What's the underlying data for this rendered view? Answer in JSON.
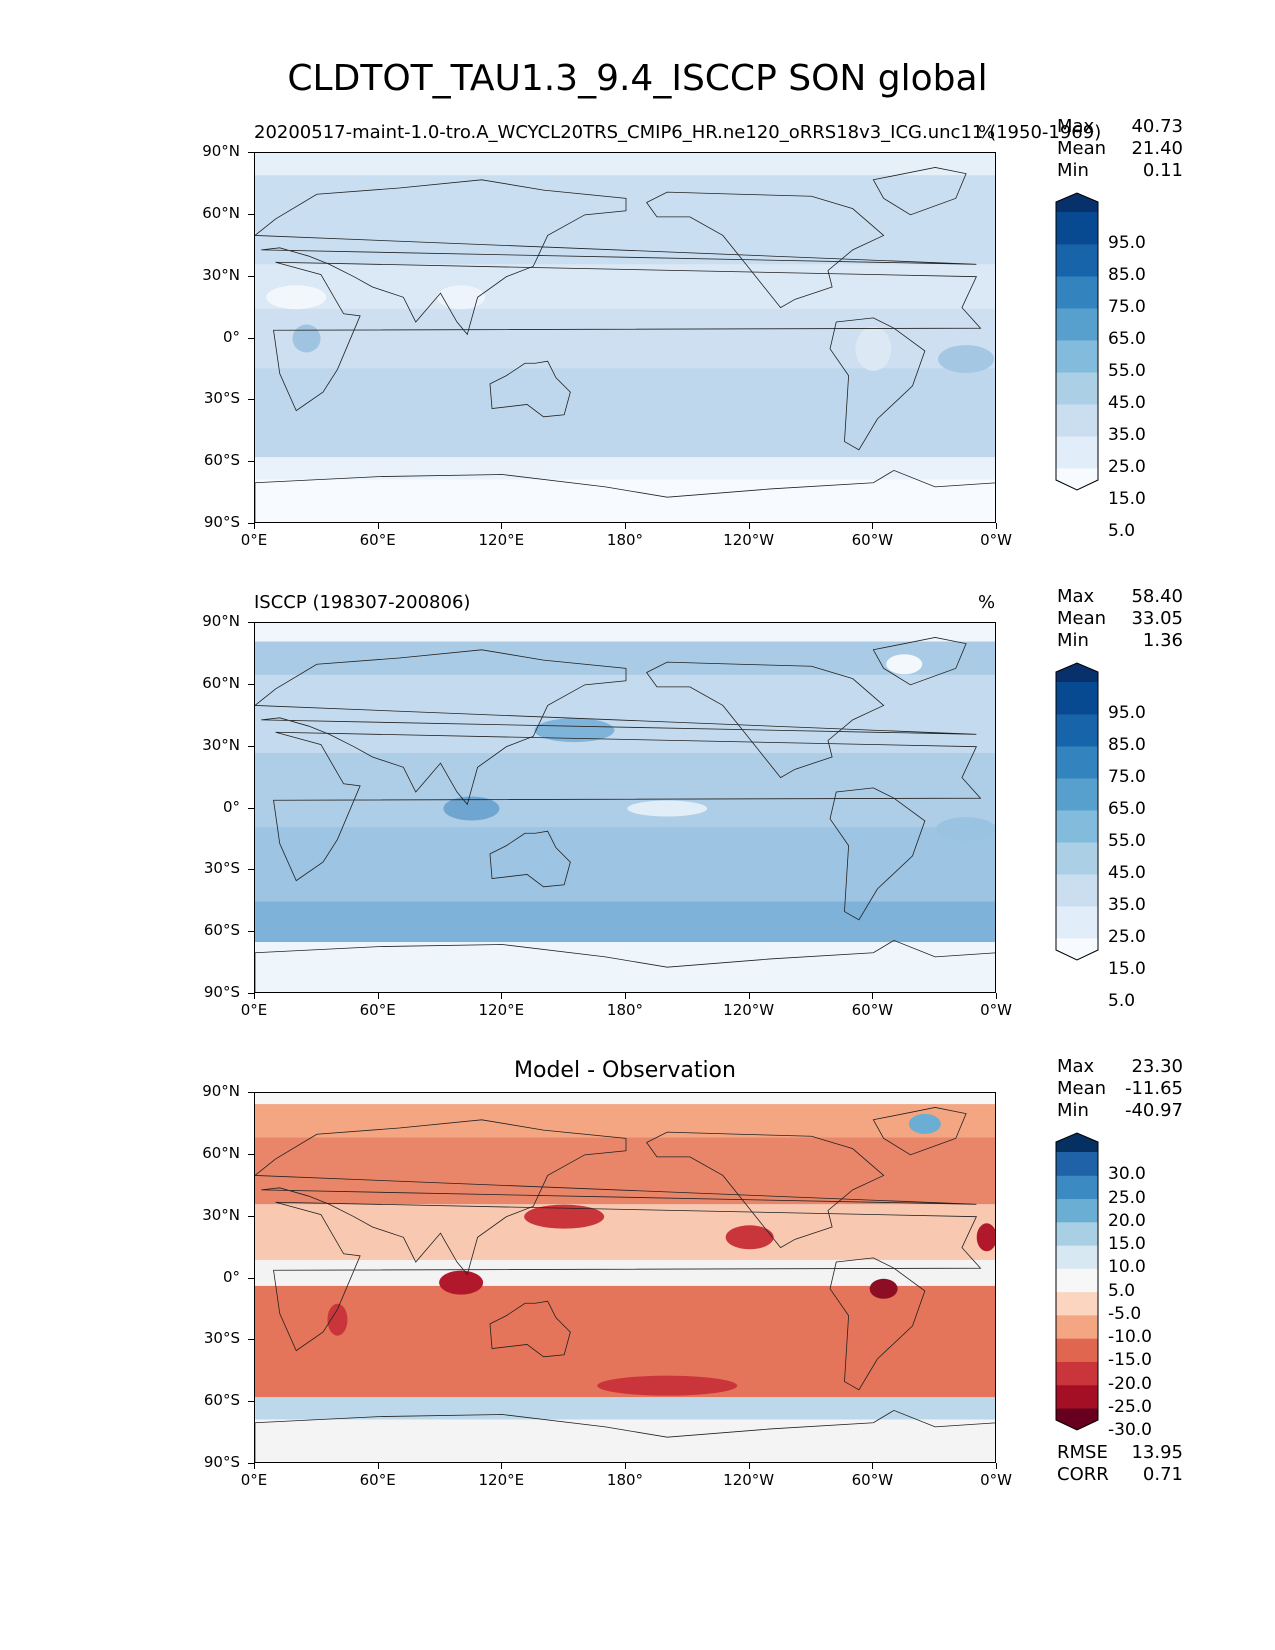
{
  "figure": {
    "title": "CLDTOT_TAU1.3_9.4_ISCCP SON global"
  },
  "axes": {
    "lat_labels": [
      "90°N",
      "60°N",
      "30°N",
      "0°",
      "30°S",
      "60°S",
      "90°S"
    ],
    "lon_labels": [
      "0°E",
      "60°E",
      "120°E",
      "180°",
      "120°W",
      "60°W",
      "0°W"
    ]
  },
  "panels": [
    {
      "id": "model",
      "title_left": "20200517-maint-1.0-tro.A_WCYCL20TRS_CMIP6_HR.ne120_oRRS18v3_ICG.unc11 (1950-1969)",
      "title_right": "%",
      "title_center": "",
      "stats": [
        {
          "label": "Max",
          "value": "40.73"
        },
        {
          "label": "Mean",
          "value": "21.40"
        },
        {
          "label": "Min",
          "value": "0.11"
        }
      ],
      "colorbar_labels": [
        "95.0",
        "85.0",
        "75.0",
        "65.0",
        "55.0",
        "45.0",
        "35.0",
        "25.0",
        "15.0",
        "5.0"
      ],
      "colorbar_colors": [
        "#f7fbff",
        "#e1edf8",
        "#cadef0",
        "#abcfe5",
        "#82bbdb",
        "#57a0ce",
        "#3383be",
        "#1764ab",
        "#084a91",
        "#08306b"
      ]
    },
    {
      "id": "obs",
      "title_left": "ISCCP (198307-200806)",
      "title_right": "%",
      "title_center": "",
      "stats": [
        {
          "label": "Max",
          "value": "58.40"
        },
        {
          "label": "Mean",
          "value": "33.05"
        },
        {
          "label": "Min",
          "value": "1.36"
        }
      ],
      "colorbar_labels": [
        "95.0",
        "85.0",
        "75.0",
        "65.0",
        "55.0",
        "45.0",
        "35.0",
        "25.0",
        "15.0",
        "5.0"
      ],
      "colorbar_colors": [
        "#f7fbff",
        "#e1edf8",
        "#cadef0",
        "#abcfe5",
        "#82bbdb",
        "#57a0ce",
        "#3383be",
        "#1764ab",
        "#084a91",
        "#08306b"
      ]
    },
    {
      "id": "diff",
      "title_left": "",
      "title_right": "",
      "title_center": "Model - Observation",
      "stats": [
        {
          "label": "Max",
          "value": "23.30"
        },
        {
          "label": "Mean",
          "value": "-11.65"
        },
        {
          "label": "Min",
          "value": "-40.97"
        }
      ],
      "metrics": [
        {
          "label": "RMSE",
          "value": "13.95"
        },
        {
          "label": "CORR",
          "value": "0.71"
        }
      ],
      "colorbar_labels": [
        "30.0",
        "25.0",
        "20.0",
        "15.0",
        "10.0",
        "5.0",
        "-5.0",
        "-10.0",
        "-15.0",
        "-20.0",
        "-25.0",
        "-30.0"
      ],
      "colorbar_colors": [
        "#67001f",
        "#a50f26",
        "#c9353a",
        "#e0664f",
        "#f4a582",
        "#fbd5c0",
        "#f7f7f7",
        "#d8e8f2",
        "#a8cfe4",
        "#6aaed3",
        "#3b8bc2",
        "#1f62a8",
        "#053061"
      ]
    }
  ]
}
